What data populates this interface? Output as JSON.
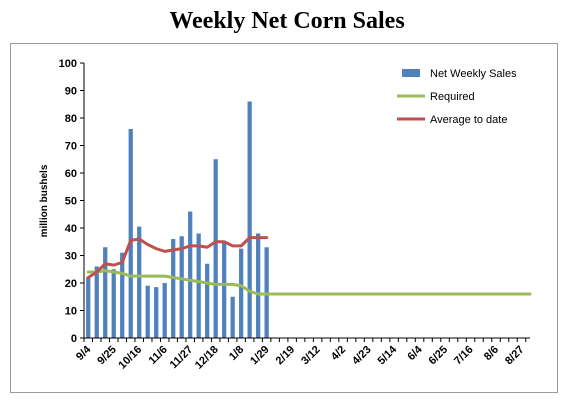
{
  "chart_data": {
    "type": "bar+line",
    "title": "Weekly Net Corn Sales",
    "ylabel": "million bushels",
    "xlabel": "",
    "ylim": [
      0,
      100
    ],
    "yticks": [
      0,
      10,
      20,
      30,
      40,
      50,
      60,
      70,
      80,
      90,
      100
    ],
    "grid": false,
    "legend_position": "top-right",
    "x_tick_labels": [
      "9/4",
      "9/25",
      "10/16",
      "11/6",
      "11/27",
      "12/18",
      "1/8",
      "1/29",
      "2/19",
      "3/12",
      "4/2",
      "4/23",
      "5/14",
      "6/4",
      "6/25",
      "7/16",
      "8/6",
      "8/27"
    ],
    "week_count": 53,
    "series": [
      {
        "name": "Net Weekly Sales",
        "kind": "bar",
        "color": "#4f81bd",
        "values": [
          22,
          26,
          33,
          25,
          31,
          76,
          40.5,
          19,
          18.5,
          20,
          36,
          37,
          46,
          38,
          27,
          65,
          35,
          15,
          32.5,
          86,
          38,
          33
        ]
      },
      {
        "name": "Required",
        "kind": "line",
        "color": "#9bbb59",
        "values": [
          24,
          24,
          24.5,
          24,
          23.5,
          22.5,
          22.5,
          22.5,
          22.5,
          22.5,
          22,
          21.5,
          21,
          20.5,
          20,
          19.5,
          19.5,
          19.5,
          19,
          17,
          16,
          16,
          16,
          16,
          16,
          16,
          16,
          16,
          16,
          16,
          16,
          16,
          16,
          16,
          16,
          16,
          16,
          16,
          16,
          16,
          16,
          16,
          16,
          16,
          16,
          16,
          16,
          16,
          16,
          16,
          16,
          16,
          16
        ]
      },
      {
        "name": "Average to date",
        "kind": "line",
        "color": "#c0504d",
        "values": [
          22,
          24,
          27,
          26.5,
          27.5,
          35.5,
          36,
          34,
          32.5,
          31.5,
          32,
          32.5,
          33.5,
          33.5,
          33,
          35,
          35,
          33.5,
          33.5,
          36.5,
          36.5,
          36.5
        ]
      }
    ]
  }
}
